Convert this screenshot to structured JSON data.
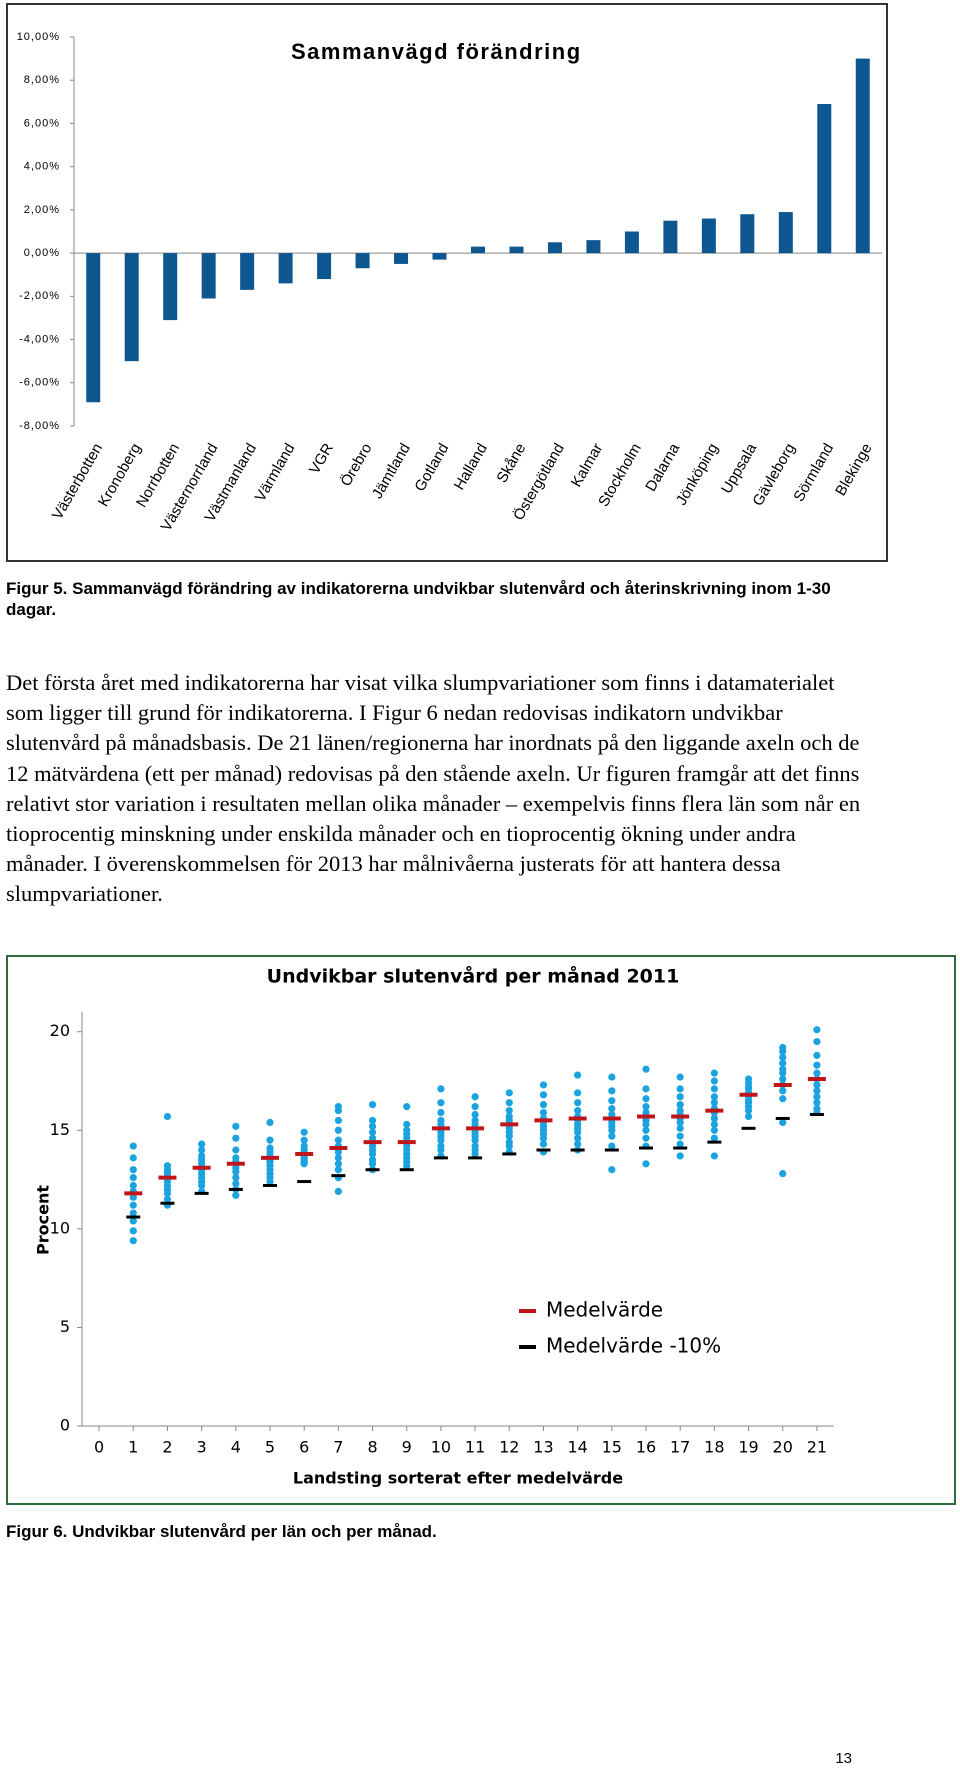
{
  "chart_data": [
    {
      "type": "bar",
      "title": "Sammanvägd förändring",
      "categories": [
        "Västerbotten",
        "Kronoberg",
        "Norrbotten",
        "Västernorrland",
        "Västmanland",
        "Värmland",
        "VGR",
        "Örebro",
        "Jämtland",
        "Gotland",
        "Halland",
        "Skåne",
        "Östergötland",
        "Kalmar",
        "Stockholm",
        "Dalarna",
        "Jönköping",
        "Uppsala",
        "Gävleborg",
        "Sörmland",
        "Blekinge"
      ],
      "values": [
        -6.9,
        -5.0,
        -3.1,
        -2.1,
        -1.7,
        -1.4,
        -1.2,
        -0.7,
        -0.5,
        -0.3,
        0.3,
        0.3,
        0.5,
        0.6,
        1.0,
        1.5,
        1.6,
        1.8,
        1.9,
        6.9,
        9.0
      ],
      "color": "#0d5690",
      "ylim": [
        -8,
        10
      ],
      "yticks": [
        {
          "value": 10,
          "label": "10,00%"
        },
        {
          "value": 8,
          "label": "8,00%"
        },
        {
          "value": 6,
          "label": "6,00%"
        },
        {
          "value": 4,
          "label": "4,00%"
        },
        {
          "value": 2,
          "label": "2,00%"
        },
        {
          "value": 0,
          "label": "0,00%"
        },
        {
          "value": -2,
          "label": "-2,00%"
        },
        {
          "value": -4,
          "label": "-4,00%"
        },
        {
          "value": -6,
          "label": "-6,00%"
        },
        {
          "value": -8,
          "label": "-8,00%"
        }
      ],
      "grid": false
    },
    {
      "type": "scatter",
      "title": "Undvikbar slutenvård per månad 2011",
      "x_label": "Landsting sorterat efter medelvärde",
      "y_label": "Procent",
      "x": [
        1,
        2,
        3,
        4,
        5,
        6,
        7,
        8,
        9,
        10,
        11,
        12,
        13,
        14,
        15,
        16,
        17,
        18,
        19,
        20,
        21
      ],
      "xlim": [
        -0.5,
        21.5
      ],
      "xticks": [
        0,
        1,
        2,
        3,
        4,
        5,
        6,
        7,
        8,
        9,
        10,
        11,
        12,
        13,
        14,
        15,
        16,
        17,
        18,
        19,
        20,
        21
      ],
      "ylim": [
        0,
        21
      ],
      "yticks": [
        0,
        5,
        10,
        15,
        20
      ],
      "grid": false,
      "legend": "lower right",
      "series": [
        {
          "color": "#1ba3e0",
          "marker": "dot",
          "values": [
            [
              14.2,
              13.6,
              13.0,
              12.6,
              12.2,
              11.9,
              11.6,
              11.2,
              10.8,
              10.4,
              9.9,
              9.4
            ],
            [
              15.7,
              13.2,
              13.0,
              12.9,
              12.8,
              12.6,
              12.4,
              12.2,
              12.0,
              11.8,
              11.5,
              11.2
            ],
            [
              14.3,
              14.0,
              13.7,
              13.5,
              13.3,
              13.1,
              13.0,
              12.8,
              12.6,
              12.4,
              12.2,
              11.9
            ],
            [
              15.2,
              14.6,
              14.0,
              13.6,
              13.4,
              13.3,
              13.1,
              12.9,
              12.6,
              12.3,
              12.0,
              11.7
            ],
            [
              15.4,
              14.5,
              14.1,
              13.9,
              13.7,
              13.5,
              13.4,
              13.2,
              13.0,
              12.8,
              12.6,
              12.4
            ],
            [
              14.9,
              14.5,
              14.2,
              14.0,
              13.9,
              13.8,
              13.7,
              13.6,
              13.5,
              13.4,
              13.4,
              13.3
            ],
            [
              16.2,
              16.0,
              15.5,
              15.0,
              14.5,
              14.2,
              13.9,
              13.6,
              13.3,
              13.0,
              12.6,
              11.9
            ],
            [
              16.3,
              15.5,
              15.2,
              14.9,
              14.6,
              14.4,
              14.2,
              14.0,
              13.8,
              13.5,
              13.3,
              13.0
            ],
            [
              16.2,
              15.3,
              15.0,
              14.8,
              14.6,
              14.4,
              14.2,
              14.0,
              13.8,
              13.6,
              13.4,
              13.2
            ],
            [
              17.1,
              16.4,
              15.9,
              15.5,
              15.3,
              15.1,
              14.9,
              14.7,
              14.5,
              14.2,
              14.0,
              13.7
            ],
            [
              16.7,
              16.2,
              15.8,
              15.5,
              15.3,
              15.1,
              14.9,
              14.7,
              14.5,
              14.2,
              14.0,
              13.8
            ],
            [
              16.9,
              16.4,
              16.0,
              15.7,
              15.5,
              15.3,
              15.1,
              14.9,
              14.7,
              14.4,
              14.2,
              13.9
            ],
            [
              17.3,
              16.8,
              16.3,
              15.9,
              15.6,
              15.4,
              15.2,
              15.0,
              14.8,
              14.6,
              14.3,
              13.9
            ],
            [
              17.8,
              16.9,
              16.4,
              16.0,
              15.7,
              15.5,
              15.3,
              15.1,
              14.9,
              14.6,
              14.3,
              14.0
            ],
            [
              17.7,
              17.0,
              16.5,
              16.1,
              15.8,
              15.6,
              15.4,
              15.2,
              15.0,
              14.7,
              14.2,
              13.0
            ],
            [
              18.1,
              17.1,
              16.6,
              16.2,
              15.9,
              15.7,
              15.5,
              15.3,
              15.0,
              14.6,
              14.2,
              13.3
            ],
            [
              17.7,
              17.1,
              16.7,
              16.3,
              16.0,
              15.8,
              15.6,
              15.4,
              15.1,
              14.7,
              14.3,
              13.7
            ],
            [
              17.9,
              17.5,
              17.1,
              16.7,
              16.4,
              16.1,
              15.9,
              15.6,
              15.3,
              15.0,
              14.6,
              13.7
            ],
            [
              17.6,
              17.4,
              17.2,
              17.1,
              16.9,
              16.8,
              16.7,
              16.5,
              16.4,
              16.2,
              16.0,
              15.7
            ],
            [
              19.2,
              19.0,
              18.7,
              18.4,
              18.1,
              17.9,
              17.6,
              17.3,
              17.0,
              16.6,
              15.4,
              12.8
            ],
            [
              20.1,
              19.5,
              18.8,
              18.3,
              17.9,
              17.6,
              17.3,
              17.0,
              16.7,
              16.4,
              16.1,
              15.9
            ]
          ]
        },
        {
          "name": "Medelvärde",
          "color": "#c0161b",
          "marker": "dash",
          "values": [
            11.8,
            12.6,
            13.1,
            13.3,
            13.6,
            13.8,
            14.1,
            14.4,
            14.4,
            15.1,
            15.1,
            15.3,
            15.5,
            15.6,
            15.6,
            15.7,
            15.7,
            16.0,
            16.8,
            17.3,
            17.6
          ]
        },
        {
          "name": "Medelvärde -10%",
          "color": "#000000",
          "marker": "dash",
          "values": [
            10.6,
            11.3,
            11.8,
            12.0,
            12.2,
            12.4,
            12.7,
            13.0,
            13.0,
            13.6,
            13.6,
            13.8,
            14.0,
            14.0,
            14.0,
            14.1,
            14.1,
            14.4,
            15.1,
            15.6,
            15.8
          ]
        }
      ]
    }
  ],
  "figure_5_caption": "Figur 5. Sammanvägd förändring av indikatorerna undvikbar slutenvård och återinskrivning inom 1-30 dagar.",
  "body_text": "Det första året med indikatorerna har visat vilka slumpvariationer som finns i datamaterialet som ligger till grund för indikatorerna. I Figur 6 nedan redovisas indikatorn undvikbar slutenvård på månadsbasis. De 21 länen/regionerna har inordnats på den liggande axeln och de 12 mätvärdena (ett per månad) redovisas på den stående axeln. Ur figuren framgår att det finns relativt stor variation i resultaten mellan olika månader – exempelvis finns flera län som når en tioprocentig minskning under enskilda månader och en tioprocentig ökning under andra månader. I överenskommelsen för 2013 har målnivåerna justerats för att hantera dessa slumpvariationer.",
  "figure_6_caption": "Figur 6. Undvikbar slutenvård per län och per månad.",
  "page_number": "13"
}
